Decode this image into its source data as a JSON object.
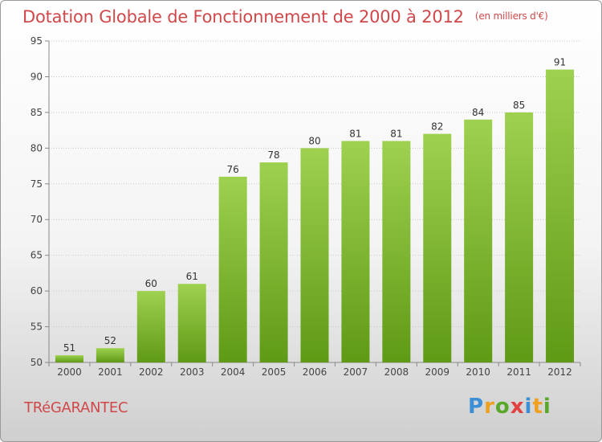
{
  "chart_data": {
    "type": "bar",
    "title": "Dotation Globale de Fonctionnement de 2000 à 2012",
    "unit": "(en milliers d'€)",
    "categories": [
      "2000",
      "2001",
      "2002",
      "2003",
      "2004",
      "2005",
      "2006",
      "2007",
      "2008",
      "2009",
      "2010",
      "2011",
      "2012"
    ],
    "values": [
      51,
      52,
      60,
      61,
      76,
      78,
      80,
      81,
      81,
      82,
      84,
      85,
      91
    ],
    "ylim": [
      50,
      95
    ],
    "yticks": [
      50,
      55,
      60,
      65,
      70,
      75,
      80,
      85,
      90,
      95
    ],
    "grid": true,
    "bar_color": "#7ab52a"
  },
  "commune": "TRéGARANTEC",
  "logo": {
    "letters": [
      "P",
      "r",
      "o",
      "x",
      "i",
      "t",
      "i"
    ],
    "colors": [
      "#3c8fd6",
      "#f0a020",
      "#5aa82a",
      "#e04040",
      "#3c8fd6",
      "#f0a020",
      "#5aa82a"
    ]
  }
}
